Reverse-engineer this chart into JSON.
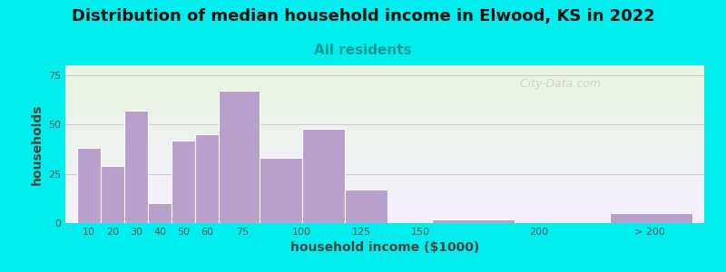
{
  "title": "Distribution of median household income in Elwood, KS in 2022",
  "subtitle": "All residents",
  "xlabel": "household income ($1000)",
  "ylabel": "households",
  "background_color": "#00EEEE",
  "plot_bg_top": "#e8f5e0",
  "plot_bg_bottom": "#f5f0ff",
  "bar_color": "#b8a0cc",
  "bar_edge_color": "#ffffff",
  "left_edges": [
    5,
    15,
    25,
    35,
    45,
    55,
    65,
    82,
    100,
    118,
    155,
    230
  ],
  "widths": [
    10,
    10,
    10,
    10,
    10,
    10,
    17,
    18,
    18,
    18,
    35,
    35
  ],
  "values": [
    38,
    29,
    57,
    10,
    42,
    45,
    67,
    33,
    48,
    17,
    2,
    5
  ],
  "yticks": [
    0,
    25,
    50,
    75
  ],
  "xtick_positions": [
    10,
    20,
    30,
    40,
    50,
    60,
    75,
    100,
    125,
    150,
    200,
    247
  ],
  "xtick_labels": [
    "10",
    "20",
    "30",
    "40",
    "50",
    "60",
    "75",
    "100",
    "125",
    "150",
    "200",
    "> 200"
  ],
  "title_fontsize": 13,
  "subtitle_fontsize": 11,
  "axis_label_fontsize": 10,
  "watermark_text": "  City-Data.com",
  "ylim": [
    0,
    80
  ],
  "xlim": [
    0,
    270
  ]
}
